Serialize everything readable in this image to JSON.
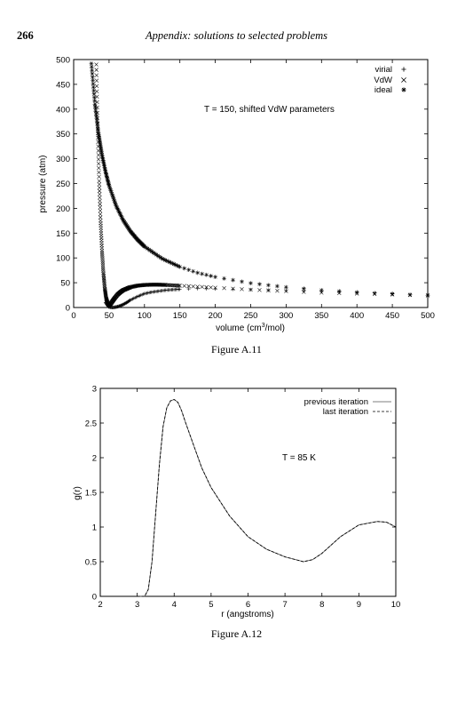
{
  "page": {
    "number": "266",
    "running_head": "Appendix: solutions to selected problems"
  },
  "figures": [
    {
      "caption": "Figure A.11"
    },
    {
      "caption": "Figure A.12"
    }
  ],
  "chart_data": [
    {
      "type": "scatter",
      "xlabel": "volume (cm³/mol)",
      "ylabel": "pressure (atm)",
      "xlim": [
        0,
        500
      ],
      "ylim": [
        0,
        500
      ],
      "xticks": [
        0,
        50,
        100,
        150,
        200,
        250,
        300,
        350,
        400,
        450,
        500
      ],
      "yticks": [
        0,
        50,
        100,
        150,
        200,
        250,
        300,
        350,
        400,
        450,
        500
      ],
      "annotation": "T = 150,  shifted  VdW parameters",
      "legend_position": "top-right",
      "series": [
        {
          "name": "virial",
          "marker": "+",
          "x": [
            45,
            48,
            50,
            55,
            60,
            65,
            70,
            75,
            80,
            90,
            100,
            110,
            120,
            130,
            140,
            150,
            175,
            200,
            250,
            300,
            350,
            400,
            500
          ],
          "y": [
            10,
            4,
            1,
            0,
            1,
            3,
            6,
            10,
            15,
            22,
            28,
            31,
            33,
            35,
            36,
            37,
            38,
            37.5,
            36,
            34,
            32,
            30,
            27
          ]
        },
        {
          "name": "VdW",
          "marker": "x",
          "x": [
            32,
            34,
            36,
            38,
            40,
            42,
            44,
            46,
            48,
            50,
            52,
            55,
            58,
            62,
            66,
            70,
            75,
            80,
            90,
            100,
            110,
            120,
            130,
            150,
            175,
            200,
            250,
            300,
            350,
            400,
            450,
            500
          ],
          "y": [
            490,
            360,
            255,
            175,
            115,
            70,
            38,
            18,
            8,
            5,
            7,
            13,
            19,
            26,
            31,
            35,
            38,
            41,
            44,
            45.5,
            46,
            46,
            45.5,
            44,
            42,
            40,
            36,
            33,
            30,
            28,
            26,
            24
          ],
          "point_density": "high"
        },
        {
          "name": "ideal",
          "marker": "*",
          "x": [
            25,
            30,
            35,
            40,
            45,
            50,
            60,
            70,
            80,
            90,
            100,
            125,
            150,
            175,
            200,
            250,
            300,
            350,
            400,
            450,
            500
          ],
          "y": [
            492,
            410,
            352,
            308,
            274,
            246,
            205,
            176,
            154,
            137,
            123,
            98.5,
            82,
            70,
            61.6,
            49,
            41,
            35,
            30.8,
            27.4,
            24.6
          ],
          "point_density": "high"
        }
      ]
    },
    {
      "type": "line",
      "xlabel": "r (angstroms)",
      "ylabel": "g(r)",
      "xlim": [
        2,
        10
      ],
      "ylim": [
        0,
        3
      ],
      "xticks": [
        2,
        3,
        4,
        5,
        6,
        7,
        8,
        9,
        10
      ],
      "yticks": [
        0,
        0.5,
        1,
        1.5,
        2,
        2.5,
        3
      ],
      "ytick_labels": [
        "0",
        "0.5",
        "1",
        "1.5",
        "2",
        "2.5",
        "3"
      ],
      "annotation": "T = 85 K",
      "legend_position": "top-right",
      "series": [
        {
          "name": "previous iteration",
          "style": "solid",
          "x": [
            3.0,
            3.2,
            3.3,
            3.4,
            3.5,
            3.6,
            3.7,
            3.8,
            3.9,
            4.0,
            4.1,
            4.2,
            4.3,
            4.5,
            4.75,
            5.0,
            5.5,
            6.0,
            6.5,
            7.0,
            7.5,
            7.75,
            8.0,
            8.5,
            9.0,
            9.5,
            9.75,
            10.0
          ],
          "y": [
            0,
            0.0,
            0.1,
            0.5,
            1.2,
            1.9,
            2.45,
            2.72,
            2.82,
            2.84,
            2.8,
            2.68,
            2.52,
            2.22,
            1.85,
            1.57,
            1.16,
            0.86,
            0.68,
            0.57,
            0.5,
            0.53,
            0.62,
            0.86,
            1.03,
            1.08,
            1.07,
            1.0
          ]
        },
        {
          "name": "last iteration",
          "style": "dashed",
          "x": [
            3.0,
            3.2,
            3.3,
            3.4,
            3.5,
            3.6,
            3.7,
            3.8,
            3.9,
            4.0,
            4.1,
            4.2,
            4.3,
            4.5,
            4.75,
            5.0,
            5.5,
            6.0,
            6.5,
            7.0,
            7.5,
            7.75,
            8.0,
            8.5,
            9.0,
            9.5,
            9.75,
            10.0
          ],
          "y": [
            0,
            0.0,
            0.1,
            0.5,
            1.2,
            1.9,
            2.45,
            2.72,
            2.82,
            2.84,
            2.8,
            2.68,
            2.52,
            2.22,
            1.85,
            1.57,
            1.16,
            0.86,
            0.68,
            0.57,
            0.5,
            0.53,
            0.62,
            0.86,
            1.03,
            1.08,
            1.07,
            1.0
          ]
        }
      ]
    }
  ]
}
